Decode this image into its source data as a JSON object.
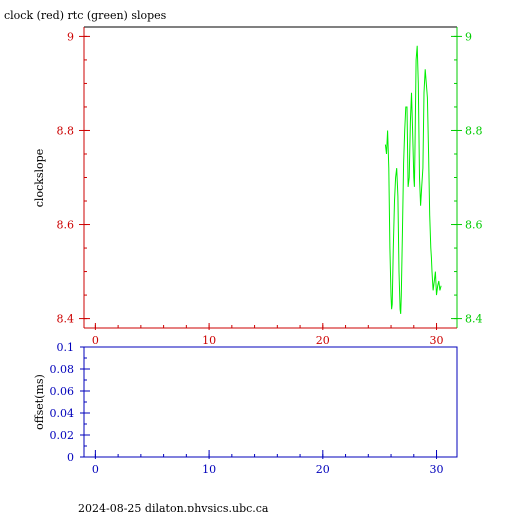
{
  "footer_text": "2024-08-25 dilaton.physics.ubc.ca",
  "chart_data": [
    {
      "type": "line",
      "title": "clock (red) rtc (green) slopes",
      "xlabel": "",
      "ylabel": "clockslope",
      "xlim": [
        -1,
        31.8
      ],
      "ylim": [
        8.38,
        9.02
      ],
      "grid": false,
      "x_ticks": [
        {
          "value": 0,
          "label": "0"
        },
        {
          "value": 10,
          "label": "10"
        },
        {
          "value": 20,
          "label": "20"
        },
        {
          "value": 30,
          "label": "30"
        }
      ],
      "x_minor_step": 2,
      "y_left_ticks": [
        {
          "value": 8.4,
          "label": "8.4"
        },
        {
          "value": 8.6,
          "label": "8.6"
        },
        {
          "value": 8.8,
          "label": "8.8"
        },
        {
          "value": 9,
          "label": "9"
        }
      ],
      "y_right_ticks": [
        {
          "value": 8.4,
          "label": "8.4"
        },
        {
          "value": 8.6,
          "label": "8.6"
        },
        {
          "value": 8.8,
          "label": "8.8"
        },
        {
          "value": 9,
          "label": "9"
        }
      ],
      "y_minor_step": 0.05,
      "colors": {
        "axis_left": "#cc0000",
        "axis_right": "#00cc00",
        "frame": "#000000"
      },
      "series": [
        {
          "color": "#00ee00",
          "x": [
            25.5,
            25.6,
            25.7,
            25.8,
            25.9,
            26.0,
            26.05,
            26.1,
            26.2,
            26.3,
            26.4,
            26.5,
            26.6,
            26.7,
            26.8,
            26.85,
            26.9,
            27.0,
            27.1,
            27.2,
            27.3,
            27.4,
            27.5,
            27.6,
            27.7,
            27.8,
            27.9,
            28.0,
            28.05,
            28.1,
            28.2,
            28.3,
            28.4,
            28.45,
            28.5,
            28.6,
            28.7,
            28.8,
            28.9,
            29.0,
            29.1,
            29.2,
            29.3,
            29.4,
            29.5,
            29.55,
            29.6,
            29.7,
            29.8,
            29.9,
            30.0,
            30.1,
            30.2,
            30.3,
            30.4
          ],
          "values": [
            8.77,
            8.75,
            8.8,
            8.72,
            8.55,
            8.45,
            8.42,
            8.43,
            8.55,
            8.65,
            8.7,
            8.72,
            8.66,
            8.5,
            8.42,
            8.41,
            8.45,
            8.58,
            8.73,
            8.8,
            8.85,
            8.85,
            8.68,
            8.7,
            8.82,
            8.88,
            8.8,
            8.7,
            8.68,
            8.75,
            8.95,
            8.98,
            8.9,
            8.8,
            8.7,
            8.64,
            8.68,
            8.72,
            8.88,
            8.93,
            8.9,
            8.87,
            8.75,
            8.62,
            8.55,
            8.53,
            8.5,
            8.46,
            8.48,
            8.5,
            8.45,
            8.47,
            8.48,
            8.46,
            8.47
          ]
        }
      ]
    },
    {
      "type": "line",
      "title": "",
      "xlabel": "",
      "ylabel": "offset(ms)",
      "xlim": [
        -1,
        31.8
      ],
      "ylim": [
        0,
        0.1
      ],
      "grid": false,
      "x_ticks": [
        {
          "value": 0,
          "label": "0"
        },
        {
          "value": 10,
          "label": "10"
        },
        {
          "value": 20,
          "label": "20"
        },
        {
          "value": 30,
          "label": "30"
        }
      ],
      "x_minor_step": 2,
      "y_ticks": [
        {
          "value": 0,
          "label": "0"
        },
        {
          "value": 0.02,
          "label": "0.02"
        },
        {
          "value": 0.04,
          "label": "0.04"
        },
        {
          "value": 0.06,
          "label": "0.06"
        },
        {
          "value": 0.08,
          "label": "0.08"
        },
        {
          "value": 0.1,
          "label": "0.1"
        }
      ],
      "y_minor_step": 0.01,
      "colors": {
        "axis": "#0000bb"
      },
      "series": []
    }
  ]
}
